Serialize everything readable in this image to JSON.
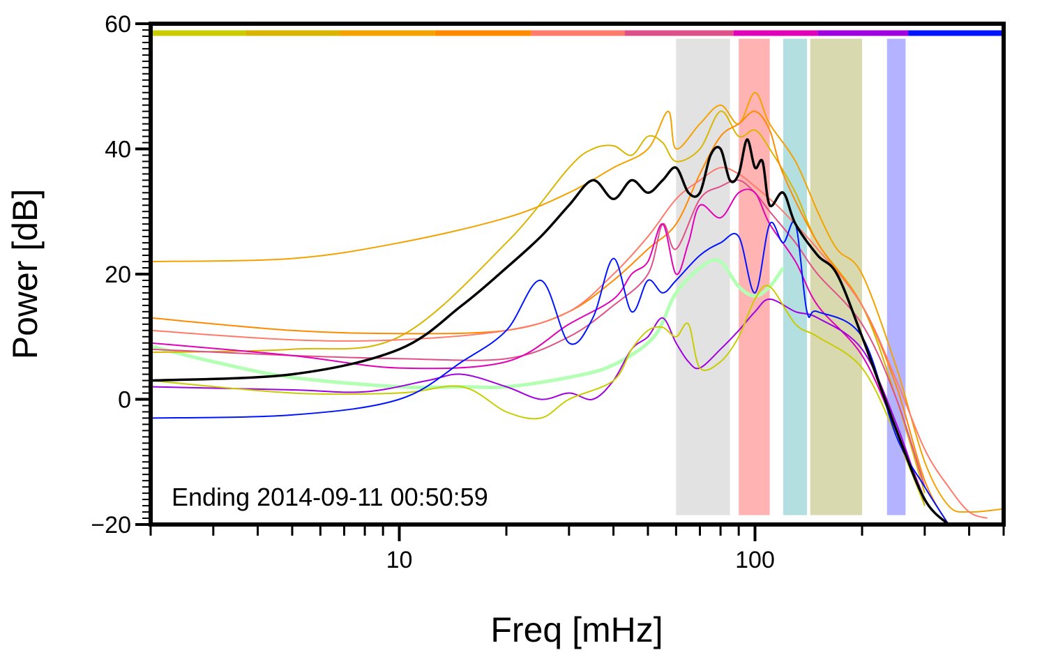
{
  "chart_data": {
    "type": "line",
    "title": "",
    "xlabel": "Freq [mHz]",
    "ylabel": "Power [dB]",
    "xscale": "log",
    "xlim": [
      2,
      500
    ],
    "ylim": [
      -20,
      60
    ],
    "xticks": [
      10,
      100
    ],
    "yticks": [
      -20,
      0,
      20,
      40,
      60
    ],
    "grid": false,
    "legend": "none",
    "annotation": "Ending 2014-09-11 00:50:59",
    "color_bar": {
      "y": 58.5,
      "segments": [
        {
          "from": 2,
          "to": 3.7,
          "color": "#c8cc00"
        },
        {
          "from": 3.7,
          "to": 6.8,
          "color": "#d9b500"
        },
        {
          "from": 6.8,
          "to": 12.6,
          "color": "#f3a200"
        },
        {
          "from": 12.6,
          "to": 23.5,
          "color": "#ff8a00"
        },
        {
          "from": 23.5,
          "to": 43,
          "color": "#ff7a6a"
        },
        {
          "from": 43,
          "to": 87,
          "color": "#e05088"
        },
        {
          "from": 87,
          "to": 150,
          "color": "#e000b8"
        },
        {
          "from": 150,
          "to": 270,
          "color": "#a000e0"
        },
        {
          "from": 270,
          "to": 500,
          "color": "#0014ff"
        }
      ]
    },
    "bands": [
      {
        "from": 60,
        "to": 85,
        "color": "#e2e2e2"
      },
      {
        "from": 90,
        "to": 110,
        "color": "#ffb3b3"
      },
      {
        "from": 120,
        "to": 140,
        "color": "#b3dfe0"
      },
      {
        "from": 143,
        "to": 200,
        "color": "#d9d9b0"
      },
      {
        "from": 235,
        "to": 265,
        "color": "#b3b3ff"
      }
    ],
    "series": [
      {
        "color": "#b3ffb3",
        "width": 5,
        "x": [
          2,
          3,
          5,
          10,
          15,
          20,
          30,
          40,
          52,
          60,
          72,
          80,
          90,
          100,
          110,
          120
        ],
        "y": [
          8.5,
          6,
          3.5,
          2,
          2,
          2,
          3.5,
          5.5,
          10,
          17,
          21.5,
          22,
          18,
          16.5,
          18,
          21
        ]
      },
      {
        "color": "#f3a200",
        "width": 2,
        "x": [
          2,
          5,
          10,
          20,
          30,
          40,
          50,
          57,
          60,
          70,
          80,
          90,
          100,
          110,
          130,
          150,
          170,
          200,
          250,
          300,
          350,
          400,
          500
        ],
        "y": [
          22,
          22.5,
          25,
          29,
          33,
          37,
          40,
          46,
          40,
          44,
          47,
          44,
          49,
          44,
          38,
          30,
          24,
          20,
          5,
          -10,
          -17,
          -18,
          -17.5
        ]
      },
      {
        "color": "#d9b500",
        "width": 2,
        "x": [
          2,
          5,
          10,
          20,
          30,
          35,
          40,
          45,
          50,
          55,
          60,
          70,
          80,
          90,
          100,
          110,
          130,
          150,
          200,
          250,
          300
        ],
        "y": [
          7.5,
          8,
          10,
          25,
          37,
          40,
          40.5,
          39,
          42,
          41,
          38,
          40,
          46,
          42,
          43,
          40,
          33,
          25,
          15,
          0,
          -15
        ]
      },
      {
        "color": "#ff8a00",
        "width": 2,
        "x": [
          2,
          5,
          10,
          20,
          30,
          40,
          50,
          60,
          70,
          80,
          90,
          100,
          110,
          120,
          150,
          200,
          250,
          300,
          350
        ],
        "y": [
          13,
          11,
          10.5,
          11,
          14,
          19,
          24,
          28,
          36,
          42,
          44,
          46,
          43,
          36,
          25,
          15,
          2,
          -13,
          -20
        ]
      },
      {
        "color": "#ff7a6a",
        "width": 2,
        "x": [
          2,
          5,
          10,
          20,
          30,
          40,
          50,
          60,
          70,
          80,
          90,
          100,
          110,
          120,
          150,
          200,
          250,
          300,
          350,
          400,
          450
        ],
        "y": [
          11,
          9.5,
          9.5,
          11,
          14,
          20,
          26,
          32,
          35,
          37,
          36,
          34,
          32,
          30,
          24,
          15,
          3,
          -8,
          -14,
          -18,
          -19
        ]
      },
      {
        "color": "#e05088",
        "width": 2,
        "x": [
          2,
          5,
          10,
          20,
          30,
          40,
          50,
          55,
          60,
          70,
          80,
          90,
          100,
          110,
          130,
          150,
          200,
          250,
          300
        ],
        "y": [
          8,
          7,
          6.5,
          6.5,
          10,
          15,
          20,
          28,
          24,
          32,
          34,
          35,
          33,
          30,
          25,
          20,
          12,
          0,
          -14
        ]
      },
      {
        "color": "#e000b8",
        "width": 2,
        "x": [
          2,
          5,
          10,
          20,
          30,
          40,
          45,
          50,
          55,
          60,
          65,
          70,
          80,
          90,
          100,
          110,
          130,
          150,
          200,
          250,
          300
        ],
        "y": [
          9,
          7,
          5,
          6,
          12,
          16,
          20,
          22,
          28,
          20,
          25,
          31,
          29,
          33,
          33,
          28,
          22,
          15,
          7,
          -5,
          -16
        ]
      },
      {
        "color": "#a000e0",
        "width": 2,
        "x": [
          2,
          5,
          8,
          12,
          15,
          20,
          25,
          30,
          35,
          40,
          45,
          50,
          55,
          60,
          65,
          70,
          80,
          90,
          100,
          110,
          130,
          150,
          200,
          250,
          300
        ],
        "y": [
          2,
          1.5,
          1.2,
          3,
          4,
          2,
          0,
          1,
          0,
          3,
          8,
          10,
          13,
          9,
          6,
          5,
          8,
          11,
          14,
          16,
          14,
          13,
          8,
          -4,
          -17
        ]
      },
      {
        "color": "#c8cc00",
        "width": 2,
        "x": [
          2,
          5,
          10,
          15,
          20,
          25,
          30,
          40,
          45,
          50,
          55,
          60,
          65,
          70,
          80,
          90,
          100,
          110,
          130,
          150,
          200,
          250,
          300
        ],
        "y": [
          3,
          1,
          1,
          2,
          -2,
          -3,
          0,
          3,
          8,
          11,
          11.5,
          10,
          12,
          5,
          6,
          10,
          16,
          18,
          12,
          10,
          5,
          -6,
          -17
        ]
      },
      {
        "color": "#0014ff",
        "width": 2,
        "x": [
          2,
          5,
          10,
          15,
          20,
          25,
          30,
          35,
          40,
          45,
          50,
          55,
          60,
          70,
          80,
          90,
          100,
          110,
          120,
          130,
          140,
          150,
          200,
          250,
          300,
          350
        ],
        "y": [
          -3,
          -2.5,
          0,
          6,
          11,
          19,
          9,
          13,
          22.5,
          14,
          19,
          17,
          19,
          23,
          25,
          26,
          17,
          28,
          25,
          28,
          14,
          14,
          10,
          -6,
          -14,
          -20
        ]
      },
      {
        "color": "#000000",
        "width": 3.5,
        "x": [
          2,
          5,
          10,
          15,
          20,
          25,
          30,
          35,
          40,
          45,
          50,
          55,
          60,
          65,
          70,
          75,
          80,
          85,
          90,
          95,
          100,
          105,
          110,
          120,
          130,
          150,
          170,
          200,
          250,
          300,
          350
        ],
        "y": [
          3,
          4,
          8,
          15,
          21,
          26,
          31,
          35,
          32,
          35,
          33,
          35,
          37,
          33,
          33,
          39,
          40,
          35,
          36,
          41.5,
          37,
          38,
          31,
          33,
          28,
          23,
          20,
          10,
          -5,
          -16,
          -20
        ]
      }
    ]
  }
}
